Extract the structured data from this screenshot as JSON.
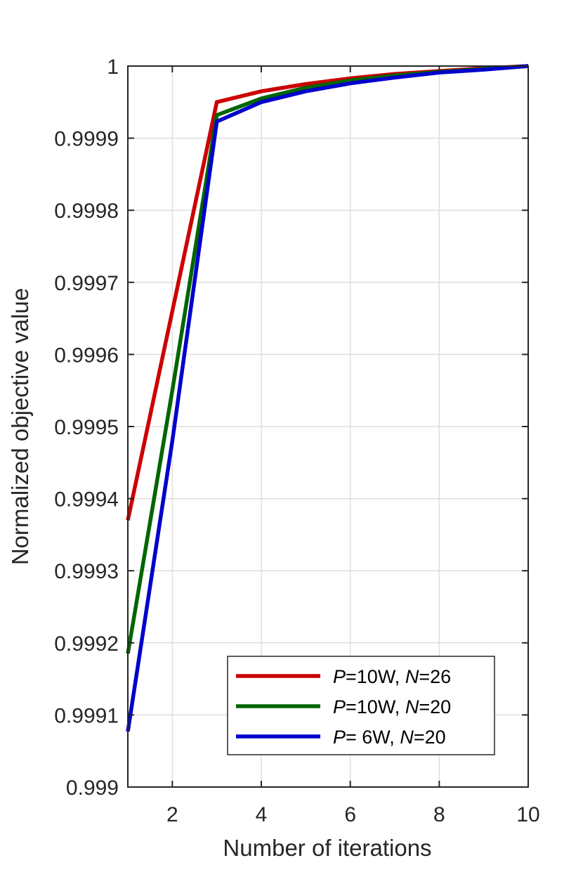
{
  "chart_data": {
    "type": "line",
    "title": "",
    "xlabel": "Number of iterations",
    "ylabel": "Normalized objective value",
    "xlim": [
      1,
      10
    ],
    "ylim": [
      0.999,
      1
    ],
    "xticks": [
      2,
      4,
      6,
      8,
      10
    ],
    "xtick_labels": [
      "2",
      "4",
      "6",
      "8",
      "10"
    ],
    "yticks": [
      0.999,
      0.9991,
      0.9992,
      0.9993,
      0.9994,
      0.9995,
      0.9996,
      0.9997,
      0.9998,
      0.9999,
      1
    ],
    "ytick_labels": [
      "0.999",
      "0.9991",
      "0.9992",
      "0.9993",
      "0.9994",
      "0.9995",
      "0.9996",
      "0.9997",
      "0.9998",
      "0.9999",
      "1"
    ],
    "grid": true,
    "legend_position": "bottom-right",
    "x": [
      1,
      2,
      3,
      4,
      5,
      6,
      7,
      8,
      9,
      10
    ],
    "series": [
      {
        "name": "P=10W,  N=26",
        "label_parts": [
          [
            "P",
            true
          ],
          [
            "=10W,  ",
            false
          ],
          [
            "N",
            true
          ],
          [
            "=26",
            false
          ]
        ],
        "color": "#cc0000",
        "values": [
          0.99937,
          0.99966,
          0.99995,
          0.999965,
          0.999975,
          0.999983,
          0.999989,
          0.999993,
          0.999997,
          1.0
        ]
      },
      {
        "name": "P=10W,  N=20",
        "label_parts": [
          [
            "P",
            true
          ],
          [
            "=10W,  ",
            false
          ],
          [
            "N",
            true
          ],
          [
            "=20",
            false
          ]
        ],
        "color": "#006600",
        "values": [
          0.999185,
          0.99955,
          0.999932,
          0.999955,
          0.99997,
          0.99998,
          0.999987,
          0.999992,
          0.999996,
          1.0
        ]
      },
      {
        "name": "P= 6W,  N=20",
        "label_parts": [
          [
            "P",
            true
          ],
          [
            "= 6W,  ",
            false
          ],
          [
            "N",
            true
          ],
          [
            "=20",
            false
          ]
        ],
        "color": "#0000cc",
        "values": [
          0.999077,
          0.99948,
          0.999923,
          0.99995,
          0.999965,
          0.999976,
          0.999984,
          0.999991,
          0.999995,
          1.0
        ]
      }
    ]
  }
}
